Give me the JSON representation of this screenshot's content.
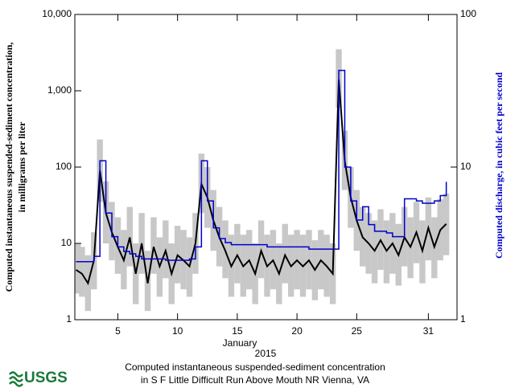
{
  "chart_data": {
    "type": "line",
    "title": [
      "Computed instantaneous suspended-sediment concentration",
      "in S F Little Difficult Run Above Mouth NR Vienna, VA"
    ],
    "ylabel": [
      "Computed instantaneous suspended-sediment concentration,",
      "in milligrams per liter"
    ],
    "y2label": "Computed discharge, in cubic feet per second",
    "xlabel": [
      "January",
      "2015"
    ],
    "logo": "USGS",
    "x": [
      1.5,
      2,
      2.5,
      3,
      3.5,
      4,
      4.5,
      5,
      5.5,
      6,
      6.5,
      7,
      7.5,
      8,
      8.5,
      9,
      9.5,
      10,
      10.5,
      11,
      11.5,
      12,
      12.5,
      13,
      13.5,
      14,
      14.5,
      15,
      15.5,
      16,
      16.5,
      17,
      17.5,
      18,
      18.5,
      19,
      19.5,
      20,
      20.5,
      21,
      21.5,
      22,
      22.5,
      23,
      23.5,
      24,
      24.5,
      25,
      25.5,
      26,
      26.5,
      27,
      27.5,
      28,
      28.5,
      29,
      29.5,
      30,
      30.5,
      31,
      31.5,
      32,
      32.5
    ],
    "xlim": [
      1.4,
      33.4
    ],
    "xticks": [
      5,
      10,
      15,
      20,
      25,
      31
    ],
    "ylim": [
      1,
      10000
    ],
    "yticks": [
      1,
      10,
      100,
      {
        "value": 1000,
        "label": "1,000"
      },
      {
        "value": 10000,
        "label": "10,000"
      }
    ],
    "y2lim": [
      1,
      100
    ],
    "y2ticks": [
      1,
      10,
      100
    ],
    "log_scale": true,
    "band": {
      "color": "#c8c8c8",
      "lower": [
        2.2,
        2,
        1.3,
        2.5,
        35,
        10,
        6,
        4,
        2.5,
        5,
        1.6,
        4,
        1.3,
        4,
        2,
        3.5,
        1.6,
        3,
        2.5,
        2,
        4,
        25,
        16,
        8,
        5,
        3.5,
        2,
        3,
        2,
        2.5,
        1.6,
        3.5,
        2,
        2.5,
        1.6,
        3,
        2,
        2.5,
        2,
        2.5,
        1.8,
        2.5,
        2,
        1.6,
        600,
        50,
        16,
        8,
        5,
        4,
        3,
        4.5,
        3,
        4,
        2.8,
        5,
        3.5,
        5.5,
        3,
        6,
        3.5,
        6,
        7
      ],
      "upper": [
        10,
        9,
        7,
        14,
        230,
        65,
        35,
        22,
        15,
        30,
        10,
        25,
        8,
        22,
        12,
        20,
        10,
        17,
        15,
        12,
        25,
        150,
        100,
        50,
        30,
        20,
        13,
        18,
        13,
        15,
        10,
        20,
        13,
        15,
        10,
        18,
        13,
        15,
        13,
        15,
        11,
        15,
        13,
        10,
        3500,
        300,
        100,
        50,
        30,
        25,
        20,
        28,
        20,
        25,
        18,
        30,
        22,
        35,
        20,
        40,
        22,
        38,
        45
      ]
    },
    "series": [
      {
        "color": "#000000",
        "values": [
          4.5,
          4,
          3,
          6,
          90,
          25,
          14,
          9,
          6,
          12,
          4,
          10,
          3,
          9,
          5,
          8,
          4,
          7,
          6,
          5,
          10,
          60,
          40,
          20,
          12,
          8,
          5,
          7,
          5,
          6,
          4,
          8,
          5,
          6,
          4,
          7,
          5,
          6,
          5,
          6,
          4.5,
          6,
          5,
          4,
          1400,
          120,
          40,
          20,
          12,
          10,
          8,
          11,
          8,
          10,
          7,
          12,
          9,
          14,
          8,
          16,
          9,
          15,
          18
        ]
      },
      {
        "color": "#0000cc",
        "axis": "y2",
        "step": true,
        "values": [
          2.4,
          2.4,
          2.4,
          2.6,
          11,
          5,
          3.5,
          3,
          2.8,
          2.7,
          2.6,
          2.5,
          2.5,
          2.5,
          2.5,
          2.45,
          2.45,
          2.45,
          2.45,
          2.5,
          3,
          11,
          6,
          4,
          3.4,
          3.2,
          3.1,
          3.1,
          3.1,
          3.1,
          3.1,
          3.1,
          3,
          3,
          3,
          3,
          3,
          3,
          3,
          2.9,
          2.9,
          2.9,
          2.9,
          2.9,
          43,
          10,
          6,
          4.5,
          5.5,
          4.2,
          3.8,
          3.8,
          3.7,
          3.5,
          3.5,
          6.2,
          6.2,
          6,
          5.8,
          5.8,
          6,
          6.5,
          8
        ]
      }
    ]
  }
}
